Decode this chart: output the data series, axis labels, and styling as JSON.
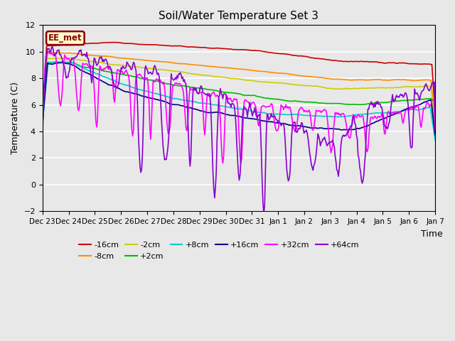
{
  "title": "Soil/Water Temperature Set 3",
  "xlabel": "Time",
  "ylabel": "Temperature (C)",
  "ylim": [
    -2,
    12
  ],
  "annotation_text": "EE_met",
  "annotation_bg": "#FFFFCC",
  "annotation_border": "#8B0000",
  "background_color": "#E8E8E8",
  "grid_color": "white",
  "xtick_labels": [
    "Dec 23",
    "Dec 24",
    "Dec 25",
    "Dec 26",
    "Dec 27",
    "Dec 28",
    "Dec 29",
    "Dec 30",
    "Dec 31",
    "Jan 1",
    "Jan 2",
    "Jan 3",
    "Jan 4",
    "Jan 5",
    "Jan 6",
    "Jan 7"
  ],
  "series_order": [
    "-16cm",
    "-8cm",
    "-2cm",
    "+2cm",
    "+8cm",
    "+16cm",
    "+32cm",
    "+64cm"
  ],
  "series": {
    "-16cm": {
      "color": "#CC0000",
      "lw": 1.2
    },
    "-8cm": {
      "color": "#FF8C00",
      "lw": 1.2
    },
    "-2cm": {
      "color": "#CCCC00",
      "lw": 1.2
    },
    "+2cm": {
      "color": "#00BB00",
      "lw": 1.2
    },
    "+8cm": {
      "color": "#00CCCC",
      "lw": 1.2
    },
    "+16cm": {
      "color": "#000088",
      "lw": 1.2
    },
    "+32cm": {
      "color": "#FF00FF",
      "lw": 1.2
    },
    "+64cm": {
      "color": "#8800CC",
      "lw": 1.2
    }
  },
  "n_points": 480,
  "legend_rows": 2,
  "legend_ncol": 6
}
